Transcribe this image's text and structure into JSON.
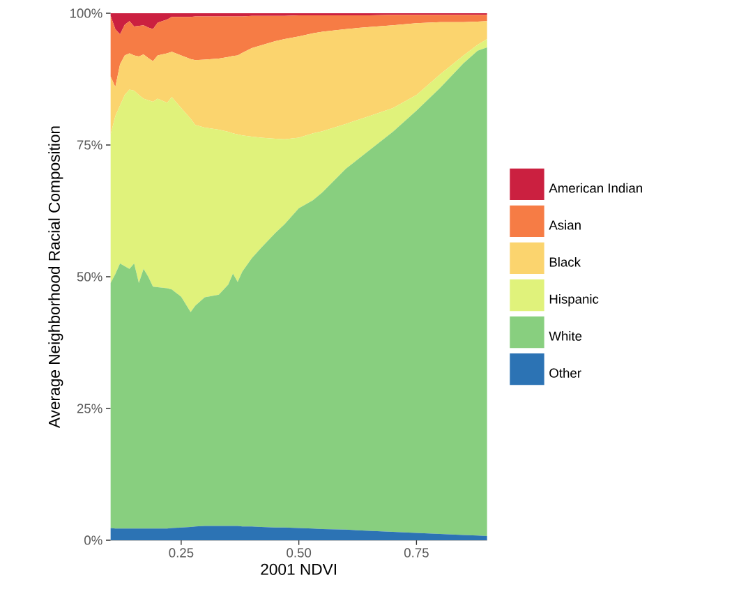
{
  "chart_data": {
    "type": "area",
    "stacked": true,
    "xlabel": "2001 NDVI",
    "ylabel": "Average Neighborhood Racial Composition",
    "legend": "right",
    "x": [
      0.1,
      0.11,
      0.12,
      0.13,
      0.14,
      0.15,
      0.16,
      0.17,
      0.18,
      0.19,
      0.2,
      0.22,
      0.23,
      0.25,
      0.27,
      0.28,
      0.3,
      0.33,
      0.35,
      0.36,
      0.37,
      0.38,
      0.4,
      0.42,
      0.45,
      0.47,
      0.5,
      0.53,
      0.55,
      0.6,
      0.65,
      0.7,
      0.75,
      0.8,
      0.85,
      0.88,
      0.9
    ],
    "xlim": [
      0.1,
      0.9
    ],
    "ylim": [
      0,
      100
    ],
    "xticks": [
      {
        "value": 0.25,
        "label": "0.25"
      },
      {
        "value": 0.5,
        "label": "0.50"
      },
      {
        "value": 0.75,
        "label": "0.75"
      }
    ],
    "yticks": [
      {
        "value": 0,
        "label": "0%"
      },
      {
        "value": 25,
        "label": "25%"
      },
      {
        "value": 50,
        "label": "50%"
      },
      {
        "value": 75,
        "label": "75%"
      },
      {
        "value": 100,
        "label": "100%"
      }
    ],
    "series": [
      {
        "name": "Other",
        "color": "#2c73b4",
        "values": [
          2.3,
          2.2,
          2.2,
          2.2,
          2.2,
          2.2,
          2.2,
          2.2,
          2.2,
          2.2,
          2.2,
          2.2,
          2.3,
          2.4,
          2.5,
          2.6,
          2.7,
          2.7,
          2.7,
          2.7,
          2.7,
          2.6,
          2.6,
          2.5,
          2.4,
          2.4,
          2.3,
          2.2,
          2.1,
          2.0,
          1.8,
          1.6,
          1.4,
          1.2,
          1.0,
          0.9,
          0.8
        ]
      },
      {
        "name": "White",
        "color": "#88cf7f",
        "values": [
          46.5,
          48.3,
          50.3,
          49.8,
          49.3,
          50.3,
          46.6,
          49.3,
          47.8,
          45.9,
          45.8,
          45.6,
          45.3,
          43.8,
          40.8,
          41.9,
          43.4,
          43.9,
          45.8,
          47.9,
          46.3,
          48.4,
          50.9,
          53.0,
          55.9,
          57.6,
          60.7,
          62.3,
          63.9,
          68.5,
          72.2,
          75.9,
          80.1,
          84.6,
          89.5,
          92.0,
          92.7
        ]
      },
      {
        "name": "Hispanic",
        "color": "#e0f27b",
        "values": [
          28.2,
          30.0,
          30.0,
          32.5,
          34.0,
          32.8,
          35.7,
          32.3,
          33.5,
          35.1,
          35.8,
          35.2,
          36.5,
          35.8,
          36.7,
          34.3,
          32.2,
          31.3,
          29.0,
          26.6,
          28.0,
          25.8,
          23.1,
          20.9,
          17.9,
          16.1,
          13.4,
          12.7,
          11.6,
          8.5,
          6.5,
          4.5,
          3.0,
          2.6,
          1.5,
          1.1,
          1.6
        ]
      },
      {
        "name": "Black",
        "color": "#fbd46e",
        "values": [
          11.0,
          5.5,
          7.8,
          7.5,
          6.9,
          6.7,
          7.3,
          8.4,
          8.0,
          7.7,
          8.2,
          9.4,
          8.6,
          10.0,
          11.3,
          12.3,
          12.9,
          13.5,
          14.2,
          14.7,
          15.0,
          15.7,
          16.8,
          17.5,
          18.5,
          19.0,
          19.2,
          19.0,
          18.9,
          18.0,
          16.9,
          15.7,
          13.6,
          9.9,
          6.3,
          4.4,
          3.4
        ]
      },
      {
        "name": "Asian",
        "color": "#f67c45",
        "values": [
          11.5,
          11.0,
          5.7,
          5.8,
          6.1,
          5.5,
          5.8,
          5.5,
          5.8,
          6.1,
          6.2,
          6.4,
          6.6,
          7.3,
          8.0,
          8.3,
          8.2,
          8.0,
          7.7,
          7.5,
          7.4,
          6.9,
          6.1,
          5.6,
          4.8,
          4.4,
          4.0,
          3.4,
          3.1,
          2.6,
          2.2,
          2.0,
          1.6,
          1.4,
          1.4,
          1.3,
          1.2
        ]
      },
      {
        "name": "American Indian",
        "color": "#cb2040",
        "values": [
          0.5,
          3.0,
          4.0,
          2.2,
          1.5,
          2.5,
          2.4,
          2.3,
          2.7,
          3.0,
          1.8,
          1.2,
          0.7,
          0.7,
          0.7,
          0.6,
          0.6,
          0.6,
          0.6,
          0.6,
          0.6,
          0.6,
          0.5,
          0.5,
          0.5,
          0.5,
          0.4,
          0.4,
          0.4,
          0.4,
          0.4,
          0.3,
          0.3,
          0.3,
          0.3,
          0.3,
          0.3
        ]
      }
    ]
  }
}
